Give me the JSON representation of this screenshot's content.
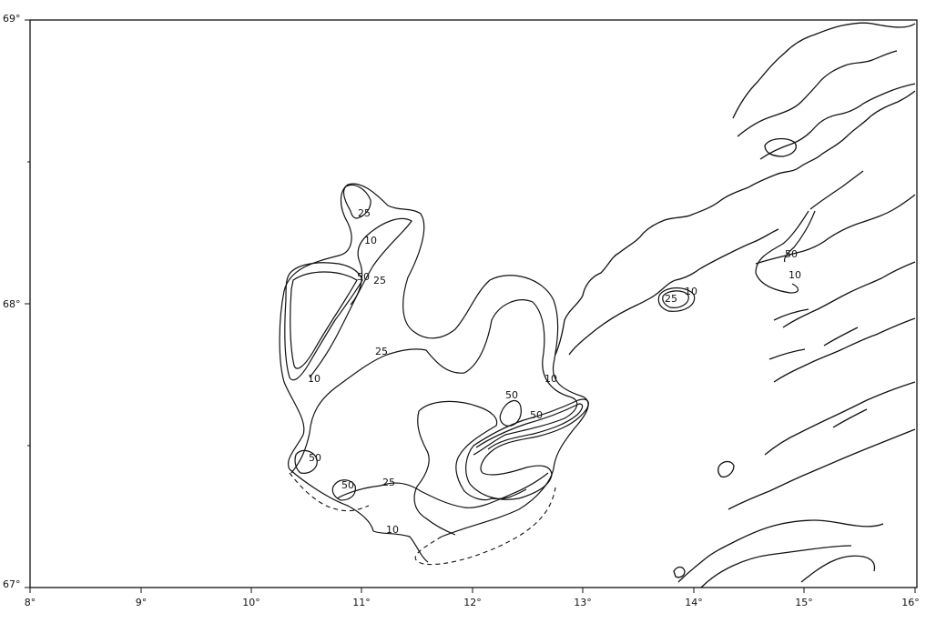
{
  "map": {
    "axes": {
      "lon_labels": [
        "8°",
        "9°",
        "10°",
        "11°",
        "12°",
        "13°",
        "14°",
        "15°",
        "16°"
      ],
      "lat_labels": [
        "69°",
        "68°",
        "67°"
      ],
      "lon_range": [
        8,
        16
      ],
      "lat_range": [
        67,
        69
      ]
    },
    "contour_labels": [
      "25",
      "10",
      "50",
      "25",
      "25",
      "10",
      "50",
      "50",
      "25",
      "10",
      "50",
      "50",
      "10",
      "25",
      "10",
      "50",
      "10"
    ]
  }
}
